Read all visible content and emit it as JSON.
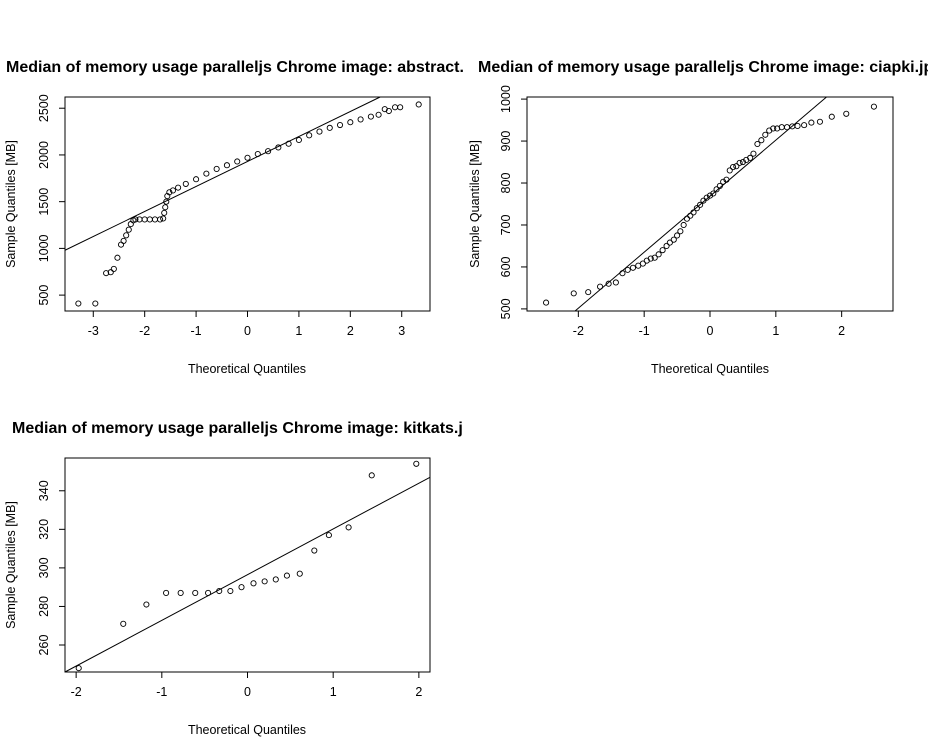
{
  "chart_data": [
    {
      "type": "scatter",
      "title": "Median of memory usage paralleljs Chrome image:  abstract.",
      "xlabel": "Theoretical Quantiles",
      "ylabel": "Sample Quantiles [MB]",
      "xlim": [
        -3.55,
        3.55
      ],
      "ylim": [
        330,
        2620
      ],
      "xticks": [
        -3,
        -2,
        -1,
        0,
        1,
        2,
        3
      ],
      "yticks": [
        500,
        1000,
        1500,
        2000,
        2500
      ],
      "line": {
        "x": [
          -3.55,
          2.58
        ],
        "y": [
          980,
          2620
        ]
      },
      "points": [
        [
          -3.29,
          410
        ],
        [
          -2.96,
          410
        ],
        [
          -2.75,
          735
        ],
        [
          -2.66,
          745
        ],
        [
          -2.6,
          780
        ],
        [
          -2.53,
          900
        ],
        [
          -2.46,
          1040
        ],
        [
          -2.41,
          1080
        ],
        [
          -2.36,
          1140
        ],
        [
          -2.31,
          1200
        ],
        [
          -2.27,
          1260
        ],
        [
          -2.22,
          1300
        ],
        [
          -2.18,
          1310
        ],
        [
          -2.1,
          1310
        ],
        [
          -2.0,
          1310
        ],
        [
          -1.9,
          1310
        ],
        [
          -1.8,
          1310
        ],
        [
          -1.7,
          1310
        ],
        [
          -1.64,
          1320
        ],
        [
          -1.62,
          1380
        ],
        [
          -1.6,
          1440
        ],
        [
          -1.58,
          1500
        ],
        [
          -1.56,
          1560
        ],
        [
          -1.52,
          1600
        ],
        [
          -1.45,
          1620
        ],
        [
          -1.35,
          1650
        ],
        [
          -1.2,
          1690
        ],
        [
          -1.0,
          1740
        ],
        [
          -0.8,
          1800
        ],
        [
          -0.6,
          1850
        ],
        [
          -0.4,
          1890
        ],
        [
          -0.2,
          1930
        ],
        [
          0.0,
          1970
        ],
        [
          0.2,
          2010
        ],
        [
          0.4,
          2040
        ],
        [
          0.6,
          2080
        ],
        [
          0.8,
          2120
        ],
        [
          1.0,
          2160
        ],
        [
          1.2,
          2210
        ],
        [
          1.4,
          2250
        ],
        [
          1.6,
          2290
        ],
        [
          1.8,
          2320
        ],
        [
          2.0,
          2350
        ],
        [
          2.2,
          2380
        ],
        [
          2.4,
          2410
        ],
        [
          2.55,
          2430
        ],
        [
          2.67,
          2490
        ],
        [
          2.75,
          2470
        ],
        [
          2.87,
          2510
        ],
        [
          2.97,
          2510
        ],
        [
          3.33,
          2540
        ]
      ]
    },
    {
      "type": "scatter",
      "title": "Median of memory usage paralleljs Chrome image:  ciapki.jp",
      "xlabel": "Theoretical Quantiles",
      "ylabel": "Sample Quantiles [MB]",
      "xlim": [
        -2.78,
        2.78
      ],
      "ylim": [
        495,
        1005
      ],
      "xticks": [
        -2,
        -1,
        0,
        1,
        2
      ],
      "yticks": [
        500,
        600,
        700,
        800,
        900,
        1000
      ],
      "line": {
        "x": [
          -2.05,
          1.77
        ],
        "y": [
          495,
          1005
        ]
      },
      "points": [
        [
          -2.49,
          515
        ],
        [
          -2.07,
          537
        ],
        [
          -1.85,
          540
        ],
        [
          -1.67,
          553
        ],
        [
          -1.54,
          560
        ],
        [
          -1.43,
          563
        ],
        [
          -1.33,
          585
        ],
        [
          -1.25,
          593
        ],
        [
          -1.17,
          598
        ],
        [
          -1.09,
          603
        ],
        [
          -1.02,
          608
        ],
        [
          -0.96,
          615
        ],
        [
          -0.9,
          620
        ],
        [
          -0.84,
          622
        ],
        [
          -0.78,
          630
        ],
        [
          -0.72,
          640
        ],
        [
          -0.66,
          650
        ],
        [
          -0.61,
          658
        ],
        [
          -0.55,
          665
        ],
        [
          -0.5,
          675
        ],
        [
          -0.45,
          685
        ],
        [
          -0.4,
          700
        ],
        [
          -0.35,
          715
        ],
        [
          -0.3,
          722
        ],
        [
          -0.25,
          730
        ],
        [
          -0.2,
          740
        ],
        [
          -0.15,
          748
        ],
        [
          -0.1,
          758
        ],
        [
          -0.05,
          765
        ],
        [
          0.0,
          770
        ],
        [
          0.05,
          775
        ],
        [
          0.1,
          785
        ],
        [
          0.15,
          793
        ],
        [
          0.2,
          803
        ],
        [
          0.25,
          808
        ],
        [
          0.3,
          830
        ],
        [
          0.35,
          838
        ],
        [
          0.4,
          840
        ],
        [
          0.45,
          848
        ],
        [
          0.5,
          850
        ],
        [
          0.55,
          855
        ],
        [
          0.61,
          860
        ],
        [
          0.66,
          870
        ],
        [
          0.72,
          893
        ],
        [
          0.78,
          902
        ],
        [
          0.84,
          915
        ],
        [
          0.9,
          925
        ],
        [
          0.96,
          930
        ],
        [
          1.02,
          930
        ],
        [
          1.09,
          933
        ],
        [
          1.17,
          933
        ],
        [
          1.25,
          935
        ],
        [
          1.33,
          936
        ],
        [
          1.43,
          938
        ],
        [
          1.54,
          944
        ],
        [
          1.67,
          946
        ],
        [
          1.85,
          958
        ],
        [
          2.07,
          965
        ],
        [
          2.49,
          982
        ]
      ]
    },
    {
      "type": "scatter",
      "title": "Median of memory usage paralleljs Chrome image:  kitkats.j",
      "xlabel": "Theoretical Quantiles",
      "ylabel": "Sample Quantiles [MB]",
      "xlim": [
        -2.13,
        2.13
      ],
      "ylim": [
        246,
        357
      ],
      "xticks": [
        -2,
        -1,
        0,
        1,
        2
      ],
      "yticks": [
        260,
        280,
        300,
        320,
        340
      ],
      "line": {
        "x": [
          -2.13,
          2.13
        ],
        "y": [
          246,
          347
        ]
      },
      "points": [
        [
          -1.97,
          248
        ],
        [
          -1.45,
          271
        ],
        [
          -1.18,
          281
        ],
        [
          -0.95,
          287
        ],
        [
          -0.78,
          287
        ],
        [
          -0.61,
          287
        ],
        [
          -0.46,
          287
        ],
        [
          -0.33,
          288
        ],
        [
          -0.2,
          288
        ],
        [
          -0.07,
          290
        ],
        [
          0.07,
          292
        ],
        [
          0.2,
          293
        ],
        [
          0.33,
          294
        ],
        [
          0.46,
          296
        ],
        [
          0.61,
          297
        ],
        [
          0.78,
          309
        ],
        [
          0.95,
          317
        ],
        [
          1.18,
          321
        ],
        [
          1.45,
          348
        ],
        [
          1.97,
          354
        ]
      ]
    }
  ]
}
